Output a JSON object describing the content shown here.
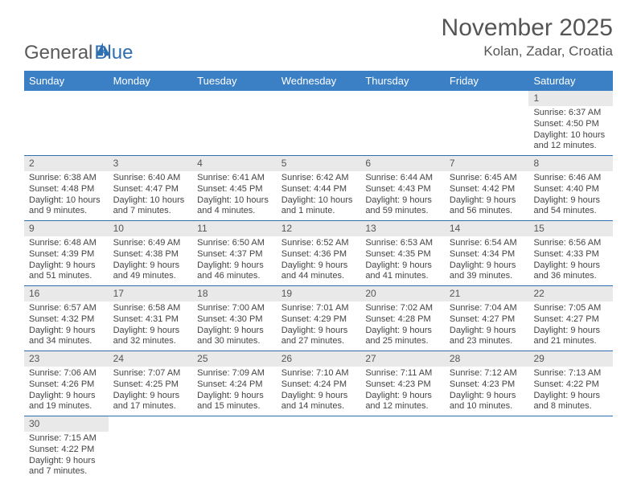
{
  "logo": {
    "general": "General",
    "blue": "Blue"
  },
  "title": "November 2025",
  "location": "Kolan, Zadar, Croatia",
  "colors": {
    "header_bg": "#3b7fc4",
    "row_border": "#2f6fb0",
    "daynum_bg": "#e9e9e9",
    "text": "#444444",
    "title_text": "#555555",
    "page_bg": "#ffffff"
  },
  "day_headers": [
    "Sunday",
    "Monday",
    "Tuesday",
    "Wednesday",
    "Thursday",
    "Friday",
    "Saturday"
  ],
  "weeks": [
    [
      null,
      null,
      null,
      null,
      null,
      null,
      {
        "n": "1",
        "sunrise": "Sunrise: 6:37 AM",
        "sunset": "Sunset: 4:50 PM",
        "daylight": "Daylight: 10 hours and 12 minutes."
      }
    ],
    [
      {
        "n": "2",
        "sunrise": "Sunrise: 6:38 AM",
        "sunset": "Sunset: 4:48 PM",
        "daylight": "Daylight: 10 hours and 9 minutes."
      },
      {
        "n": "3",
        "sunrise": "Sunrise: 6:40 AM",
        "sunset": "Sunset: 4:47 PM",
        "daylight": "Daylight: 10 hours and 7 minutes."
      },
      {
        "n": "4",
        "sunrise": "Sunrise: 6:41 AM",
        "sunset": "Sunset: 4:45 PM",
        "daylight": "Daylight: 10 hours and 4 minutes."
      },
      {
        "n": "5",
        "sunrise": "Sunrise: 6:42 AM",
        "sunset": "Sunset: 4:44 PM",
        "daylight": "Daylight: 10 hours and 1 minute."
      },
      {
        "n": "6",
        "sunrise": "Sunrise: 6:44 AM",
        "sunset": "Sunset: 4:43 PM",
        "daylight": "Daylight: 9 hours and 59 minutes."
      },
      {
        "n": "7",
        "sunrise": "Sunrise: 6:45 AM",
        "sunset": "Sunset: 4:42 PM",
        "daylight": "Daylight: 9 hours and 56 minutes."
      },
      {
        "n": "8",
        "sunrise": "Sunrise: 6:46 AM",
        "sunset": "Sunset: 4:40 PM",
        "daylight": "Daylight: 9 hours and 54 minutes."
      }
    ],
    [
      {
        "n": "9",
        "sunrise": "Sunrise: 6:48 AM",
        "sunset": "Sunset: 4:39 PM",
        "daylight": "Daylight: 9 hours and 51 minutes."
      },
      {
        "n": "10",
        "sunrise": "Sunrise: 6:49 AM",
        "sunset": "Sunset: 4:38 PM",
        "daylight": "Daylight: 9 hours and 49 minutes."
      },
      {
        "n": "11",
        "sunrise": "Sunrise: 6:50 AM",
        "sunset": "Sunset: 4:37 PM",
        "daylight": "Daylight: 9 hours and 46 minutes."
      },
      {
        "n": "12",
        "sunrise": "Sunrise: 6:52 AM",
        "sunset": "Sunset: 4:36 PM",
        "daylight": "Daylight: 9 hours and 44 minutes."
      },
      {
        "n": "13",
        "sunrise": "Sunrise: 6:53 AM",
        "sunset": "Sunset: 4:35 PM",
        "daylight": "Daylight: 9 hours and 41 minutes."
      },
      {
        "n": "14",
        "sunrise": "Sunrise: 6:54 AM",
        "sunset": "Sunset: 4:34 PM",
        "daylight": "Daylight: 9 hours and 39 minutes."
      },
      {
        "n": "15",
        "sunrise": "Sunrise: 6:56 AM",
        "sunset": "Sunset: 4:33 PM",
        "daylight": "Daylight: 9 hours and 36 minutes."
      }
    ],
    [
      {
        "n": "16",
        "sunrise": "Sunrise: 6:57 AM",
        "sunset": "Sunset: 4:32 PM",
        "daylight": "Daylight: 9 hours and 34 minutes."
      },
      {
        "n": "17",
        "sunrise": "Sunrise: 6:58 AM",
        "sunset": "Sunset: 4:31 PM",
        "daylight": "Daylight: 9 hours and 32 minutes."
      },
      {
        "n": "18",
        "sunrise": "Sunrise: 7:00 AM",
        "sunset": "Sunset: 4:30 PM",
        "daylight": "Daylight: 9 hours and 30 minutes."
      },
      {
        "n": "19",
        "sunrise": "Sunrise: 7:01 AM",
        "sunset": "Sunset: 4:29 PM",
        "daylight": "Daylight: 9 hours and 27 minutes."
      },
      {
        "n": "20",
        "sunrise": "Sunrise: 7:02 AM",
        "sunset": "Sunset: 4:28 PM",
        "daylight": "Daylight: 9 hours and 25 minutes."
      },
      {
        "n": "21",
        "sunrise": "Sunrise: 7:04 AM",
        "sunset": "Sunset: 4:27 PM",
        "daylight": "Daylight: 9 hours and 23 minutes."
      },
      {
        "n": "22",
        "sunrise": "Sunrise: 7:05 AM",
        "sunset": "Sunset: 4:27 PM",
        "daylight": "Daylight: 9 hours and 21 minutes."
      }
    ],
    [
      {
        "n": "23",
        "sunrise": "Sunrise: 7:06 AM",
        "sunset": "Sunset: 4:26 PM",
        "daylight": "Daylight: 9 hours and 19 minutes."
      },
      {
        "n": "24",
        "sunrise": "Sunrise: 7:07 AM",
        "sunset": "Sunset: 4:25 PM",
        "daylight": "Daylight: 9 hours and 17 minutes."
      },
      {
        "n": "25",
        "sunrise": "Sunrise: 7:09 AM",
        "sunset": "Sunset: 4:24 PM",
        "daylight": "Daylight: 9 hours and 15 minutes."
      },
      {
        "n": "26",
        "sunrise": "Sunrise: 7:10 AM",
        "sunset": "Sunset: 4:24 PM",
        "daylight": "Daylight: 9 hours and 14 minutes."
      },
      {
        "n": "27",
        "sunrise": "Sunrise: 7:11 AM",
        "sunset": "Sunset: 4:23 PM",
        "daylight": "Daylight: 9 hours and 12 minutes."
      },
      {
        "n": "28",
        "sunrise": "Sunrise: 7:12 AM",
        "sunset": "Sunset: 4:23 PM",
        "daylight": "Daylight: 9 hours and 10 minutes."
      },
      {
        "n": "29",
        "sunrise": "Sunrise: 7:13 AM",
        "sunset": "Sunset: 4:22 PM",
        "daylight": "Daylight: 9 hours and 8 minutes."
      }
    ],
    [
      {
        "n": "30",
        "sunrise": "Sunrise: 7:15 AM",
        "sunset": "Sunset: 4:22 PM",
        "daylight": "Daylight: 9 hours and 7 minutes."
      },
      null,
      null,
      null,
      null,
      null,
      null
    ]
  ]
}
